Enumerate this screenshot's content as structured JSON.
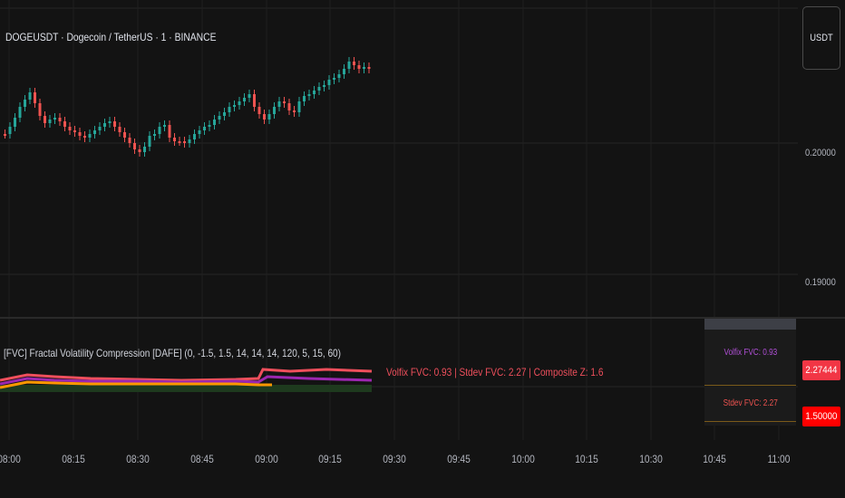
{
  "chart": {
    "title": "DOGEUSDT · Dogecoin / TetherUS · 1 · BINANCE",
    "currency_button": "USDT",
    "price_ticks": [
      "0.20000",
      "0.19000"
    ]
  },
  "indicator": {
    "label": "[FVC] Fractal Volatility Compression [DAFE] (0, -1.5, 1.5, 14, 14, 14, 120, 5, 15, 60)",
    "readout": "Volfix FVC: 0.93 | Stdev FVC: 2.27 | Composite Z: 1.6",
    "table": {
      "row1": "Volfix FVC: 0.93",
      "row2": "Stdev FVC: 2.27"
    },
    "badges": [
      "2.27444",
      "1.50000"
    ]
  },
  "time_axis": [
    "08:00",
    "08:15",
    "08:30",
    "08:45",
    "09:00",
    "09:15",
    "09:30",
    "09:45",
    "10:00",
    "10:15",
    "10:30",
    "10:45",
    "11:00"
  ],
  "colors": {
    "background": "#131313",
    "up": "#26a69a",
    "down": "#ef5350",
    "readout": "#ef4f5c",
    "badge1": "#f23645",
    "badge2": "#ff0000"
  }
}
